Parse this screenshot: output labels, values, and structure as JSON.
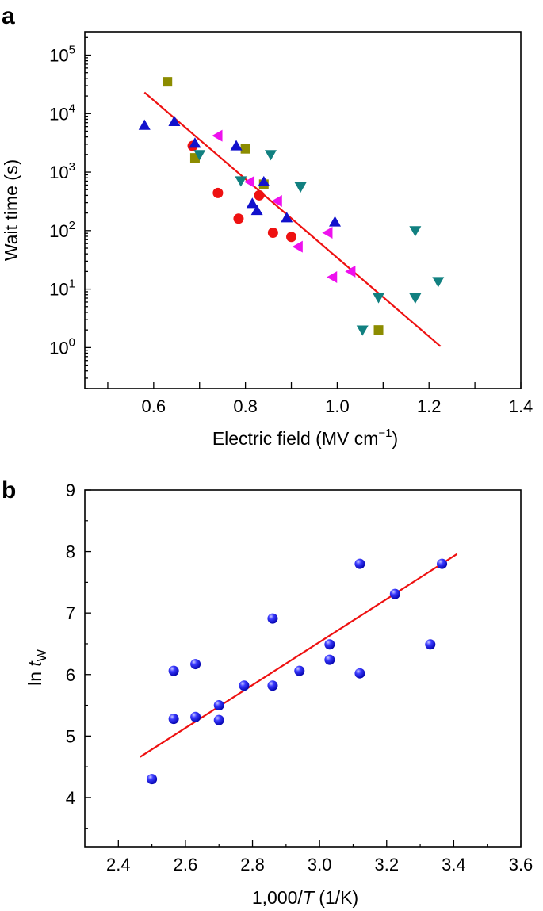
{
  "figure": {
    "panel_a_letter": "a",
    "panel_b_letter": "b"
  },
  "chart_data": [
    {
      "type": "scatter",
      "panel": "a",
      "xlabel": "Electric field (MV cm",
      "xlabel_sup": "−1",
      "xlabel_suffix": ")",
      "ylabel": "Wait time (s)",
      "xlim": [
        0.45,
        1.4
      ],
      "ylim_log10": [
        -0.7,
        5.4
      ],
      "yscale": "log",
      "x_ticks": [
        0.6,
        0.8,
        1.0,
        1.2,
        1.4
      ],
      "x_tick_labels": [
        "0.6",
        "0.8",
        "1.0",
        "1.2",
        "1.4"
      ],
      "y_tick_exponents": [
        0,
        1,
        2,
        3,
        4,
        5
      ],
      "y_tick_base": "10",
      "y_tick_sups": [
        "0",
        "1",
        "2",
        "3",
        "4",
        "5"
      ],
      "grid": false,
      "series": [
        {
          "marker": "circle",
          "color": "#ee1111",
          "points": [
            [
              0.685,
              2800
            ],
            [
              0.74,
              440
            ],
            [
              0.785,
              160
            ],
            [
              0.83,
              400
            ],
            [
              0.86,
              92
            ],
            [
              0.9,
              78
            ]
          ]
        },
        {
          "marker": "square",
          "color": "#8c8c00",
          "points": [
            [
              0.63,
              35000
            ],
            [
              0.69,
              1750
            ],
            [
              0.8,
              2500
            ],
            [
              0.84,
              620
            ],
            [
              1.09,
              2
            ]
          ]
        },
        {
          "marker": "triangle-up",
          "color": "#1111cc",
          "points": [
            [
              0.58,
              6300
            ],
            [
              0.645,
              7300
            ],
            [
              0.69,
              3100
            ],
            [
              0.78,
              2800
            ],
            [
              0.815,
              290
            ],
            [
              0.825,
              220
            ],
            [
              0.84,
              680
            ],
            [
              0.89,
              165
            ],
            [
              0.995,
              140
            ]
          ]
        },
        {
          "marker": "triangle-down",
          "color": "#118080",
          "points": [
            [
              0.7,
              2000
            ],
            [
              0.79,
              710
            ],
            [
              0.855,
              2000
            ],
            [
              0.92,
              560
            ],
            [
              1.055,
              2
            ],
            [
              1.09,
              7.2
            ],
            [
              1.17,
              100
            ],
            [
              1.17,
              7.1
            ],
            [
              1.22,
              13.5
            ]
          ]
        },
        {
          "marker": "triangle-left",
          "color": "#ee11ee",
          "points": [
            [
              0.74,
              4200
            ],
            [
              0.81,
              680
            ],
            [
              0.87,
              320
            ],
            [
              0.915,
              53
            ],
            [
              0.98,
              92
            ],
            [
              0.99,
              16
            ],
            [
              1.03,
              20
            ]
          ]
        }
      ],
      "fit_line": {
        "color": "#ee1111",
        "points": [
          [
            0.58,
            23000
          ],
          [
            1.225,
            1.05
          ]
        ]
      }
    },
    {
      "type": "scatter",
      "panel": "b",
      "xlabel": "1,000/",
      "xlabel_italic": "T",
      "xlabel_suffix": " (1/K)",
      "ylabel": "ln ",
      "ylabel_italic": "t",
      "ylabel_sub": "W",
      "xlim": [
        2.3,
        3.6
      ],
      "ylim": [
        3.2,
        9.0
      ],
      "x_ticks": [
        2.4,
        2.6,
        2.8,
        3.0,
        3.2,
        3.4,
        3.6
      ],
      "x_tick_labels": [
        "2.4",
        "2.6",
        "2.8",
        "3.0",
        "3.2",
        "3.4",
        "3.6"
      ],
      "y_ticks": [
        4,
        5,
        6,
        7,
        8,
        9
      ],
      "y_tick_labels": [
        "4",
        "5",
        "6",
        "7",
        "8",
        "9"
      ],
      "grid": false,
      "series": [
        {
          "marker": "sphere",
          "color": "#1a1aee",
          "points": [
            [
              2.5,
              4.3
            ],
            [
              2.565,
              6.06
            ],
            [
              2.565,
              5.28
            ],
            [
              2.63,
              6.17
            ],
            [
              2.63,
              5.31
            ],
            [
              2.7,
              5.5
            ],
            [
              2.7,
              5.26
            ],
            [
              2.775,
              5.82
            ],
            [
              2.86,
              6.91
            ],
            [
              2.86,
              5.82
            ],
            [
              2.94,
              6.06
            ],
            [
              3.03,
              6.49
            ],
            [
              3.03,
              6.24
            ],
            [
              3.12,
              7.8
            ],
            [
              3.12,
              6.02
            ],
            [
              3.225,
              7.31
            ],
            [
              3.33,
              6.49
            ],
            [
              3.365,
              7.8
            ]
          ]
        }
      ],
      "fit_line": {
        "color": "#ee1111",
        "points": [
          [
            2.465,
            4.66
          ],
          [
            3.41,
            7.96
          ]
        ]
      }
    }
  ]
}
